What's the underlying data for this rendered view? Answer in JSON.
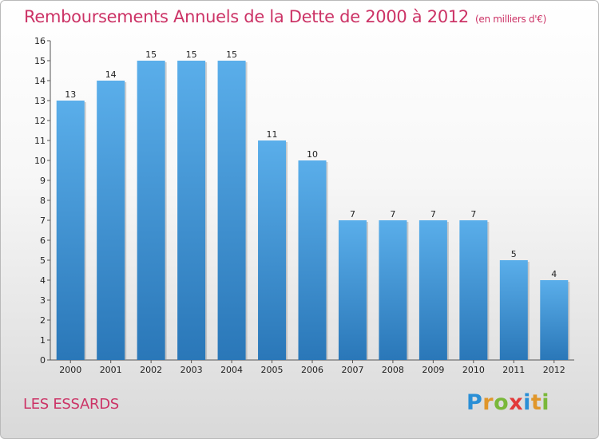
{
  "chart_data": {
    "type": "bar",
    "title": "Remboursements Annuels de la Dette de 2000 à 2012",
    "subtitle": "(en milliers d'€)",
    "categories": [
      "2000",
      "2001",
      "2002",
      "2003",
      "2004",
      "2005",
      "2006",
      "2007",
      "2008",
      "2009",
      "2010",
      "2011",
      "2012"
    ],
    "values": [
      13,
      14,
      15,
      15,
      15,
      11,
      10,
      7,
      7,
      7,
      7,
      5,
      4
    ],
    "ylim": [
      0,
      16
    ],
    "yticks": [
      0,
      1,
      2,
      3,
      4,
      5,
      6,
      7,
      8,
      9,
      10,
      11,
      12,
      13,
      14,
      15,
      16
    ],
    "grid": false,
    "bar_color": "#3d8fd3",
    "title_color": "#cc3366"
  },
  "footer": {
    "commune": "LES ESSARDS",
    "logo": "Proxiti"
  }
}
